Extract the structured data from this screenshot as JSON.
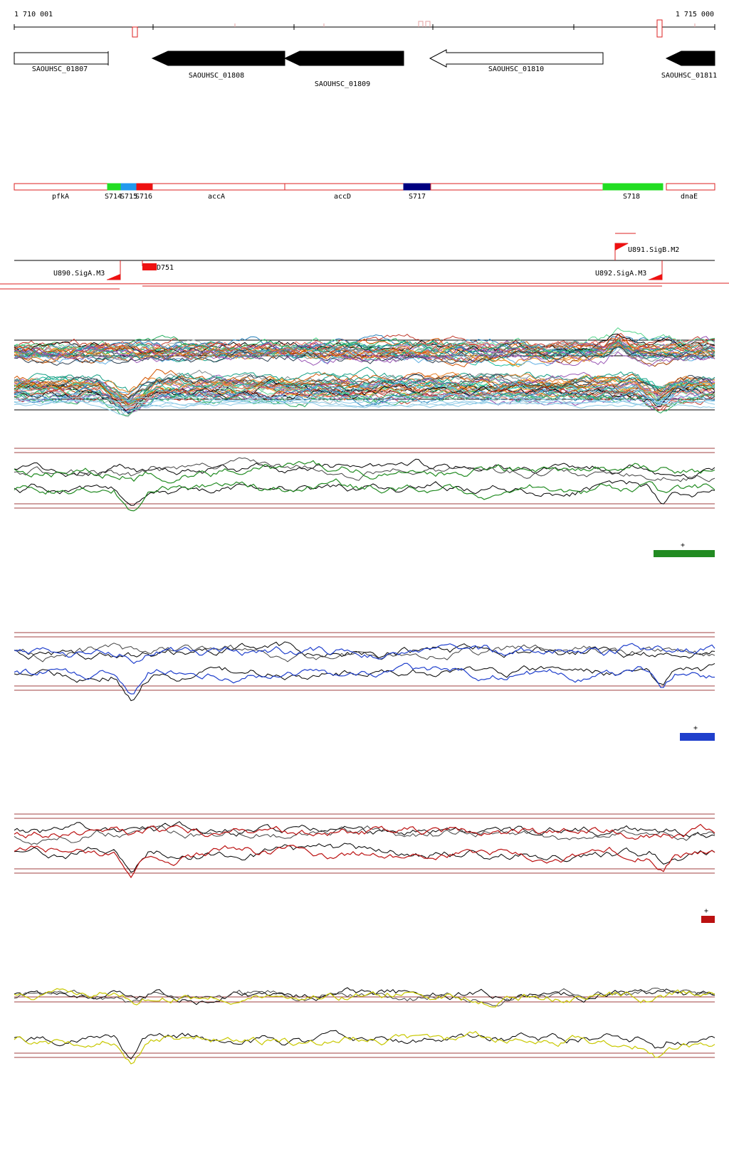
{
  "ruler": {
    "start_label": "1 710 001",
    "end_label": "1 715 000"
  },
  "cds_genes": [
    {
      "id": "g1807",
      "label": "SAOUHSC_01807",
      "strand": "+",
      "filled": false
    },
    {
      "id": "g1808",
      "label": "SAOUHSC_01808",
      "strand": "-",
      "filled": true
    },
    {
      "id": "g1809",
      "label": "SAOUHSC_01809",
      "strand": "-",
      "filled": true
    },
    {
      "id": "g1810",
      "label": "SAOUHSC_01810",
      "strand": "-",
      "filled": false
    },
    {
      "id": "g1811",
      "label": "SAOUHSC_01811",
      "strand": "-",
      "filled": true
    }
  ],
  "annotation_track": {
    "segments": [
      {
        "id": "pfkA",
        "label": "pfkA",
        "fill": "#ffffff"
      },
      {
        "id": "S714",
        "label": "S714",
        "fill": "#22dd22"
      },
      {
        "id": "S715",
        "label": "S715",
        "fill": "#2299ee"
      },
      {
        "id": "S716",
        "label": "S716",
        "fill": "#ee1111"
      },
      {
        "id": "accA",
        "label": "accA",
        "fill": "#ffffff"
      },
      {
        "id": "accD",
        "label": "accD",
        "fill": "#ffffff"
      },
      {
        "id": "S717",
        "label": "S717",
        "fill": "#000080"
      },
      {
        "id": "gap",
        "label": "",
        "fill": "#ffffff"
      },
      {
        "id": "S718",
        "label": "S718",
        "fill": "#22dd22"
      },
      {
        "id": "dnaE",
        "label": "dnaE",
        "fill": "#ffffff"
      }
    ]
  },
  "promoters": [
    {
      "id": "U890",
      "label": "U890.SigA.M3",
      "strand": "-"
    },
    {
      "id": "D751",
      "label": "D751",
      "strand": "+"
    },
    {
      "id": "U891",
      "label": "U891.SigB.M2",
      "strand": "+"
    },
    {
      "id": "U892",
      "label": "U892.SigA.M3",
      "strand": "-"
    }
  ],
  "condition_panels": [
    {
      "id": "green",
      "color": "#228b22",
      "marker": "+"
    },
    {
      "id": "blue",
      "color": "#1f3fcc",
      "marker": "+"
    },
    {
      "id": "red",
      "color": "#bb1111",
      "marker": "+"
    },
    {
      "id": "yellow",
      "color": "#c8c800",
      "marker": ""
    }
  ],
  "colors": {
    "gene_outline": "#000000",
    "annotation_outline": "#dd2222",
    "threshold_line": "#a04040"
  }
}
